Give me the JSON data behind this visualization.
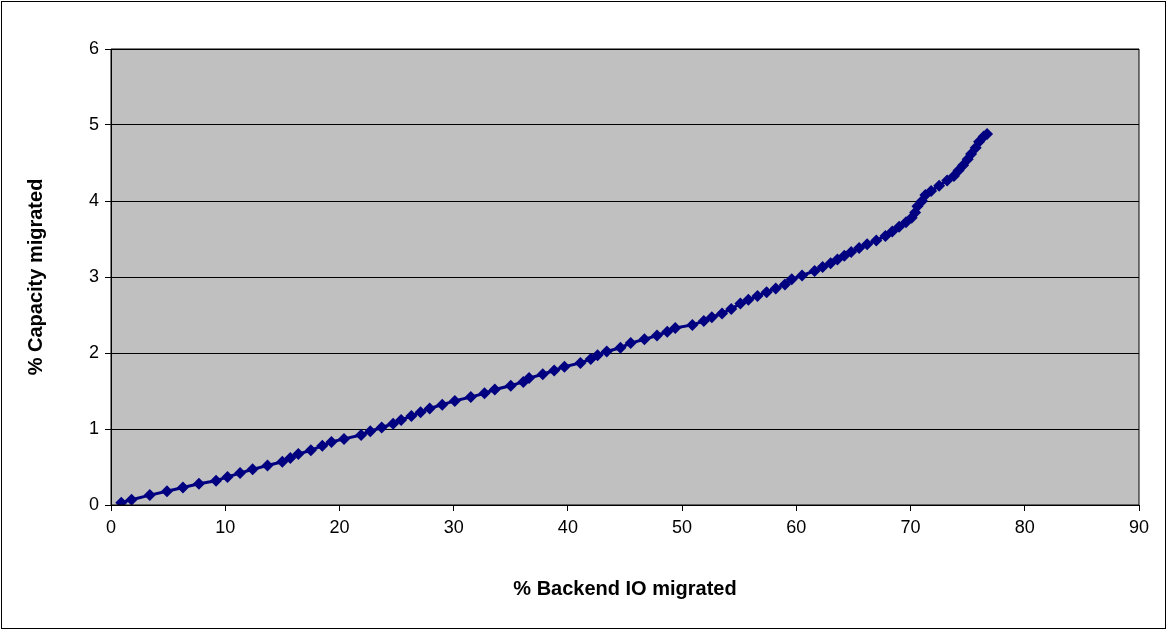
{
  "chart_data": {
    "type": "line",
    "xlabel": "% Backend IO migrated",
    "ylabel": "% Capacity migrated",
    "xlim": [
      0,
      90
    ],
    "xticks": [
      0,
      10,
      20,
      30,
      40,
      50,
      60,
      70,
      80,
      90
    ],
    "ylim": [
      0,
      6
    ],
    "yticks": [
      0,
      1,
      2,
      3,
      4,
      5,
      6
    ],
    "grid": "y",
    "marker": "diamond",
    "line_style": "solid",
    "x": [
      0.9,
      1.8,
      3.4,
      4.9,
      6.3,
      7.7,
      9.2,
      10.2,
      11.3,
      12.4,
      13.7,
      15,
      15.7,
      16.4,
      17.5,
      18.5,
      19.3,
      20.4,
      21.9,
      22.7,
      23.7,
      24.7,
      25.4,
      26.3,
      27.1,
      27.9,
      29,
      30.1,
      31.5,
      32.7,
      33.6,
      35,
      36.1,
      36.6,
      37.8,
      38.8,
      39.7,
      41.1,
      42,
      42.6,
      43.4,
      44.6,
      45.5,
      46.7,
      47.8,
      48.7,
      49.4,
      50.9,
      51.9,
      52.6,
      53.5,
      54.3,
      55.1,
      55.8,
      56.6,
      57.4,
      58.2,
      59,
      59.6,
      60.5,
      61.6,
      62.3,
      63,
      63.6,
      64.2,
      64.8,
      65.5,
      66.2,
      67,
      67.8,
      68.4,
      69,
      69.6,
      70.1,
      70.4,
      70.6,
      71,
      71.3,
      71.8,
      72.5,
      73.2,
      73.8,
      74.2,
      74.6,
      75,
      75.3,
      75.7,
      76,
      76.4,
      76.7
    ],
    "series": [
      {
        "color": "#000080",
        "values": [
          0.03,
          0.07,
          0.13,
          0.18,
          0.23,
          0.28,
          0.32,
          0.37,
          0.42,
          0.47,
          0.52,
          0.57,
          0.62,
          0.67,
          0.72,
          0.78,
          0.83,
          0.87,
          0.92,
          0.97,
          1.02,
          1.07,
          1.12,
          1.17,
          1.22,
          1.27,
          1.32,
          1.37,
          1.42,
          1.47,
          1.52,
          1.57,
          1.62,
          1.67,
          1.72,
          1.77,
          1.82,
          1.87,
          1.92,
          1.97,
          2.02,
          2.07,
          2.13,
          2.18,
          2.23,
          2.28,
          2.33,
          2.37,
          2.42,
          2.47,
          2.52,
          2.58,
          2.65,
          2.7,
          2.75,
          2.8,
          2.85,
          2.9,
          2.97,
          3.02,
          3.08,
          3.13,
          3.18,
          3.23,
          3.28,
          3.33,
          3.38,
          3.43,
          3.48,
          3.54,
          3.6,
          3.66,
          3.72,
          3.78,
          3.85,
          3.93,
          4.0,
          4.08,
          4.13,
          4.2,
          4.27,
          4.33,
          4.4,
          4.47,
          4.55,
          4.62,
          4.7,
          4.78,
          4.85,
          4.88
        ]
      }
    ]
  }
}
